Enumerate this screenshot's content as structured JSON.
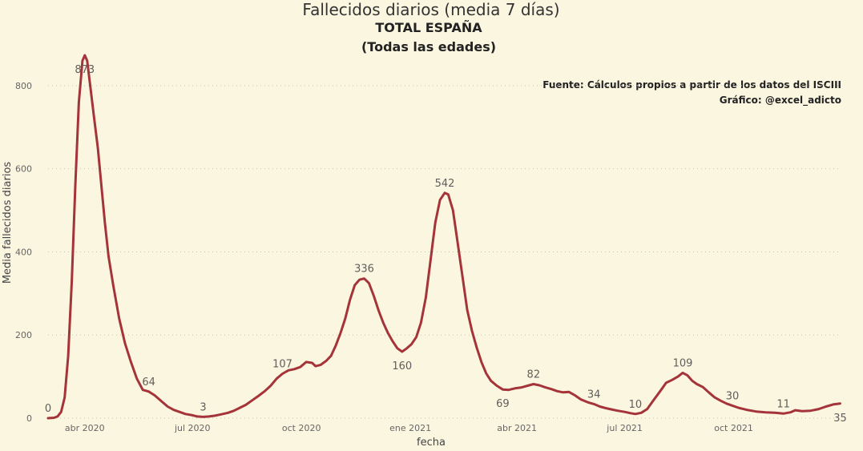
{
  "chart_data": {
    "type": "line",
    "title": "Fallecidos diarios (media 7 días)",
    "subtitle_1": "TOTAL ESPAÑA",
    "subtitle_2": "(Todas las edades)",
    "source_line_1": "Fuente: Cálculos propios a partir de los datos del ISCIII",
    "source_line_2": "Gráfico: @excel_adicto",
    "xlabel": "fecha",
    "ylabel": "Media fallecidos diarios",
    "ylim": [
      0,
      900
    ],
    "yticks": [
      0,
      200,
      400,
      600,
      800
    ],
    "xlim": [
      "2020-03-01",
      "2021-12-31"
    ],
    "xticks": [
      {
        "date": "2020-04-01",
        "label": "abr 2020"
      },
      {
        "date": "2020-07-01",
        "label": "jul 2020"
      },
      {
        "date": "2020-10-01",
        "label": "oct 2020"
      },
      {
        "date": "2021-01-01",
        "label": "ene 2021"
      },
      {
        "date": "2021-04-01",
        "label": "abr 2021"
      },
      {
        "date": "2021-07-01",
        "label": "jul 2021"
      },
      {
        "date": "2021-10-01",
        "label": "oct 2021"
      }
    ],
    "grid": true,
    "line_color": "#a4343a",
    "series": [
      {
        "points": [
          [
            "2020-03-01",
            0
          ],
          [
            "2020-03-06",
            1
          ],
          [
            "2020-03-09",
            4
          ],
          [
            "2020-03-12",
            15
          ],
          [
            "2020-03-15",
            50
          ],
          [
            "2020-03-18",
            150
          ],
          [
            "2020-03-21",
            330
          ],
          [
            "2020-03-24",
            560
          ],
          [
            "2020-03-27",
            760
          ],
          [
            "2020-03-30",
            860
          ],
          [
            "2020-04-01",
            873
          ],
          [
            "2020-04-03",
            860
          ],
          [
            "2020-04-06",
            790
          ],
          [
            "2020-04-09",
            720
          ],
          [
            "2020-04-12",
            650
          ],
          [
            "2020-04-15",
            560
          ],
          [
            "2020-04-18",
            470
          ],
          [
            "2020-04-21",
            390
          ],
          [
            "2020-04-25",
            320
          ],
          [
            "2020-04-30",
            240
          ],
          [
            "2020-05-05",
            180
          ],
          [
            "2020-05-10",
            135
          ],
          [
            "2020-05-15",
            95
          ],
          [
            "2020-05-20",
            68
          ],
          [
            "2020-05-25",
            64
          ],
          [
            "2020-05-30",
            55
          ],
          [
            "2020-06-05",
            40
          ],
          [
            "2020-06-10",
            28
          ],
          [
            "2020-06-15",
            20
          ],
          [
            "2020-06-20",
            15
          ],
          [
            "2020-06-25",
            10
          ],
          [
            "2020-07-01",
            7
          ],
          [
            "2020-07-05",
            4
          ],
          [
            "2020-07-10",
            3
          ],
          [
            "2020-07-15",
            4
          ],
          [
            "2020-07-20",
            6
          ],
          [
            "2020-07-25",
            9
          ],
          [
            "2020-07-31",
            13
          ],
          [
            "2020-08-05",
            18
          ],
          [
            "2020-08-10",
            25
          ],
          [
            "2020-08-15",
            32
          ],
          [
            "2020-08-20",
            42
          ],
          [
            "2020-08-25",
            52
          ],
          [
            "2020-08-31",
            65
          ],
          [
            "2020-09-05",
            78
          ],
          [
            "2020-09-10",
            95
          ],
          [
            "2020-09-15",
            107
          ],
          [
            "2020-09-20",
            115
          ],
          [
            "2020-09-25",
            118
          ],
          [
            "2020-09-30",
            123
          ],
          [
            "2020-10-05",
            135
          ],
          [
            "2020-10-10",
            133
          ],
          [
            "2020-10-13",
            125
          ],
          [
            "2020-10-17",
            128
          ],
          [
            "2020-10-22",
            138
          ],
          [
            "2020-10-26",
            150
          ],
          [
            "2020-10-30",
            175
          ],
          [
            "2020-11-03",
            205
          ],
          [
            "2020-11-07",
            240
          ],
          [
            "2020-11-11",
            285
          ],
          [
            "2020-11-15",
            320
          ],
          [
            "2020-11-19",
            333
          ],
          [
            "2020-11-23",
            336
          ],
          [
            "2020-11-27",
            325
          ],
          [
            "2020-12-01",
            295
          ],
          [
            "2020-12-05",
            260
          ],
          [
            "2020-12-09",
            230
          ],
          [
            "2020-12-13",
            205
          ],
          [
            "2020-12-17",
            185
          ],
          [
            "2020-12-21",
            168
          ],
          [
            "2020-12-25",
            160
          ],
          [
            "2020-12-29",
            168
          ],
          [
            "2021-01-02",
            178
          ],
          [
            "2021-01-06",
            195
          ],
          [
            "2021-01-10",
            230
          ],
          [
            "2021-01-14",
            290
          ],
          [
            "2021-01-18",
            380
          ],
          [
            "2021-01-22",
            470
          ],
          [
            "2021-01-26",
            525
          ],
          [
            "2021-01-30",
            542
          ],
          [
            "2021-02-02",
            538
          ],
          [
            "2021-02-06",
            500
          ],
          [
            "2021-02-10",
            420
          ],
          [
            "2021-02-14",
            340
          ],
          [
            "2021-02-18",
            260
          ],
          [
            "2021-02-22",
            210
          ],
          [
            "2021-02-26",
            170
          ],
          [
            "2021-03-02",
            135
          ],
          [
            "2021-03-06",
            108
          ],
          [
            "2021-03-10",
            90
          ],
          [
            "2021-03-15",
            78
          ],
          [
            "2021-03-20",
            69
          ],
          [
            "2021-03-25",
            68
          ],
          [
            "2021-03-31",
            72
          ],
          [
            "2021-04-05",
            74
          ],
          [
            "2021-04-10",
            78
          ],
          [
            "2021-04-15",
            82
          ],
          [
            "2021-04-20",
            79
          ],
          [
            "2021-04-25",
            74
          ],
          [
            "2021-04-30",
            70
          ],
          [
            "2021-05-05",
            65
          ],
          [
            "2021-05-10",
            62
          ],
          [
            "2021-05-15",
            63
          ],
          [
            "2021-05-20",
            55
          ],
          [
            "2021-05-25",
            45
          ],
          [
            "2021-05-31",
            38
          ],
          [
            "2021-06-05",
            34
          ],
          [
            "2021-06-10",
            28
          ],
          [
            "2021-06-15",
            24
          ],
          [
            "2021-06-20",
            21
          ],
          [
            "2021-06-25",
            18
          ],
          [
            "2021-07-01",
            15
          ],
          [
            "2021-07-06",
            12
          ],
          [
            "2021-07-10",
            10
          ],
          [
            "2021-07-15",
            13
          ],
          [
            "2021-07-20",
            22
          ],
          [
            "2021-07-25",
            42
          ],
          [
            "2021-07-31",
            65
          ],
          [
            "2021-08-05",
            85
          ],
          [
            "2021-08-10",
            92
          ],
          [
            "2021-08-15",
            100
          ],
          [
            "2021-08-19",
            109
          ],
          [
            "2021-08-23",
            103
          ],
          [
            "2021-08-27",
            90
          ],
          [
            "2021-08-31",
            82
          ],
          [
            "2021-09-05",
            75
          ],
          [
            "2021-09-10",
            62
          ],
          [
            "2021-09-15",
            50
          ],
          [
            "2021-09-20",
            42
          ],
          [
            "2021-09-25",
            35
          ],
          [
            "2021-09-30",
            30
          ],
          [
            "2021-10-05",
            25
          ],
          [
            "2021-10-12",
            20
          ],
          [
            "2021-10-20",
            16
          ],
          [
            "2021-10-28",
            14
          ],
          [
            "2021-11-05",
            13
          ],
          [
            "2021-11-12",
            11
          ],
          [
            "2021-11-18",
            14
          ],
          [
            "2021-11-22",
            19
          ],
          [
            "2021-11-28",
            17
          ],
          [
            "2021-12-05",
            18
          ],
          [
            "2021-12-12",
            22
          ],
          [
            "2021-12-18",
            28
          ],
          [
            "2021-12-24",
            33
          ],
          [
            "2021-12-30",
            35
          ]
        ]
      }
    ],
    "annotations": [
      {
        "date": "2020-03-01",
        "value": 0,
        "label": "0",
        "pos": "above"
      },
      {
        "date": "2020-04-01",
        "value": 873,
        "label": "873",
        "pos": "below"
      },
      {
        "date": "2020-05-25",
        "value": 64,
        "label": "64",
        "pos": "above"
      },
      {
        "date": "2020-07-10",
        "value": 3,
        "label": "3",
        "pos": "above"
      },
      {
        "date": "2020-09-15",
        "value": 107,
        "label": "107",
        "pos": "above"
      },
      {
        "date": "2020-11-23",
        "value": 336,
        "label": "336",
        "pos": "above"
      },
      {
        "date": "2020-12-25",
        "value": 160,
        "label": "160",
        "pos": "below"
      },
      {
        "date": "2021-01-30",
        "value": 542,
        "label": "542",
        "pos": "above"
      },
      {
        "date": "2021-03-20",
        "value": 69,
        "label": "69",
        "pos": "below"
      },
      {
        "date": "2021-04-15",
        "value": 82,
        "label": "82",
        "pos": "above"
      },
      {
        "date": "2021-06-05",
        "value": 34,
        "label": "34",
        "pos": "above"
      },
      {
        "date": "2021-07-10",
        "value": 10,
        "label": "10",
        "pos": "above"
      },
      {
        "date": "2021-08-19",
        "value": 109,
        "label": "109",
        "pos": "above"
      },
      {
        "date": "2021-09-30",
        "value": 30,
        "label": "30",
        "pos": "above"
      },
      {
        "date": "2021-11-12",
        "value": 11,
        "label": "11",
        "pos": "above"
      },
      {
        "date": "2021-12-30",
        "value": 35,
        "label": "35",
        "pos": "below"
      }
    ]
  }
}
